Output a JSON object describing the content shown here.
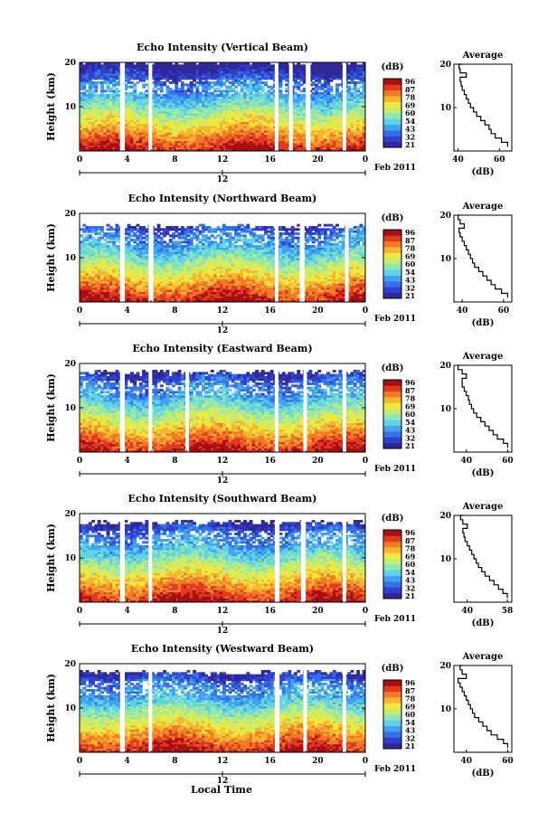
{
  "figure": {
    "xlabel": "Local Time",
    "date_label": "Feb 2011"
  },
  "colors": {
    "scale": [
      "#30279a",
      "#3140cc",
      "#3570e8",
      "#40a2f0",
      "#5fd2e6",
      "#8ee6b6",
      "#c2ec72",
      "#f1e83e",
      "#f6b530",
      "#f27a27",
      "#e03a20",
      "#a80f14"
    ]
  },
  "chart_data": [
    {
      "type": "heatmap",
      "title": "Echo Intensity (Vertical Beam)",
      "ylabel": "Height (km)",
      "ylim": [
        0,
        20
      ],
      "xlim": [
        0,
        24
      ],
      "x_ticks": [
        "0",
        "4",
        "8",
        "12",
        "16",
        "20",
        "0"
      ],
      "y_ticks": [
        "10",
        "20"
      ],
      "date_tick": "12",
      "colorbar": {
        "unit": "(dB)",
        "ticks": [
          "96",
          "87",
          "78",
          "69",
          "60",
          "54",
          "43",
          "32",
          "21"
        ],
        "range": [
          21,
          96
        ]
      },
      "gaps_hours": [
        [
          3.4,
          3.8
        ],
        [
          5.8,
          6.1
        ],
        [
          16.4,
          16.7
        ],
        [
          17.6,
          17.9
        ],
        [
          19.0,
          19.4
        ],
        [
          22.1,
          22.4
        ]
      ],
      "top_km": 20,
      "average": {
        "title": "Average",
        "xlabel": "(dB)",
        "xticks": [
          "40",
          "60"
        ],
        "xlim": [
          38,
          66
        ],
        "height_km": [
          1,
          2,
          3,
          4,
          5,
          6,
          7,
          8,
          9,
          10,
          11,
          12,
          13,
          14,
          15,
          16,
          17,
          18,
          19,
          20
        ],
        "values_db": [
          64,
          61,
          58,
          56,
          55,
          53,
          51,
          49,
          47.5,
          46,
          45,
          44,
          43,
          42,
          41.5,
          41,
          44,
          41,
          40.5,
          42
        ]
      }
    },
    {
      "type": "heatmap",
      "title": "Echo Intensity (Northward Beam)",
      "ylabel": "Height (km)",
      "ylim": [
        0,
        20
      ],
      "xlim": [
        0,
        24
      ],
      "x_ticks": [
        "0",
        "4",
        "8",
        "12",
        "16",
        "20",
        "0"
      ],
      "y_ticks": [
        "10",
        "20"
      ],
      "date_tick": "12",
      "colorbar": {
        "unit": "(dB)",
        "ticks": [
          "96",
          "87",
          "78",
          "69",
          "60",
          "54",
          "43",
          "32",
          "21"
        ],
        "range": [
          21,
          96
        ]
      },
      "gaps_hours": [
        [
          3.4,
          3.8
        ],
        [
          5.8,
          6.2
        ],
        [
          16.4,
          16.7
        ],
        [
          18.5,
          18.9
        ],
        [
          22.3,
          22.6
        ]
      ],
      "top_km": 17,
      "average": {
        "title": "Average",
        "xlabel": "(dB)",
        "xticks": [
          "40",
          "60"
        ],
        "xlim": [
          36,
          64
        ],
        "height_km": [
          1,
          2,
          3,
          4,
          5,
          6,
          7,
          8,
          9,
          10,
          11,
          12,
          13,
          14,
          15,
          16,
          17,
          18,
          19,
          20
        ],
        "values_db": [
          62,
          59,
          56,
          54,
          52,
          50,
          48,
          46,
          45,
          44,
          43,
          42,
          41,
          40,
          39,
          38.5,
          41,
          39,
          38,
          39
        ]
      }
    },
    {
      "type": "heatmap",
      "title": "Echo Intensity (Eastward Beam)",
      "ylabel": "Height (km)",
      "ylim": [
        0,
        20
      ],
      "xlim": [
        0,
        24
      ],
      "x_ticks": [
        "0",
        "4",
        "8",
        "12",
        "16",
        "20",
        "0"
      ],
      "y_ticks": [
        "10",
        "20"
      ],
      "date_tick": "12",
      "colorbar": {
        "unit": "(dB)",
        "ticks": [
          "96",
          "87",
          "78",
          "69",
          "60",
          "54",
          "43",
          "32",
          "21"
        ],
        "range": [
          21,
          96
        ]
      },
      "gaps_hours": [
        [
          3.4,
          3.8
        ],
        [
          5.8,
          6.1
        ],
        [
          8.9,
          9.2
        ],
        [
          16.4,
          16.7
        ],
        [
          18.8,
          19.1
        ],
        [
          22.1,
          22.4
        ]
      ],
      "top_km": 18,
      "average": {
        "title": "Average",
        "xlabel": "(dB)",
        "xticks": [
          "40",
          "60"
        ],
        "xlim": [
          34,
          62
        ],
        "height_km": [
          1,
          2,
          3,
          4,
          5,
          6,
          7,
          8,
          9,
          10,
          11,
          12,
          13,
          14,
          15,
          16,
          17,
          18,
          19,
          20
        ],
        "values_db": [
          60,
          58,
          55,
          53,
          51,
          49,
          47,
          45,
          43.5,
          42.5,
          41.5,
          41,
          40,
          39,
          38,
          38,
          40,
          38,
          36,
          37
        ]
      }
    },
    {
      "type": "heatmap",
      "title": "Echo Intensity (Southward Beam)",
      "ylabel": "Height (km)",
      "ylim": [
        0,
        20
      ],
      "xlim": [
        0,
        24
      ],
      "x_ticks": [
        "0",
        "4",
        "8",
        "12",
        "16",
        "20",
        "0"
      ],
      "y_ticks": [
        "10",
        "20"
      ],
      "date_tick": "12",
      "colorbar": {
        "unit": "(dB)",
        "ticks": [
          "96",
          "87",
          "78",
          "69",
          "60",
          "54",
          "43",
          "32",
          "21"
        ],
        "range": [
          21,
          96
        ]
      },
      "gaps_hours": [
        [
          3.4,
          3.8
        ],
        [
          5.8,
          6.1
        ],
        [
          16.4,
          16.8
        ],
        [
          18.6,
          19.0
        ],
        [
          22.1,
          22.4
        ]
      ],
      "top_km": 18,
      "average": {
        "title": "Average",
        "xlabel": "(dB)",
        "xticks": [
          "40",
          "58"
        ],
        "xlim": [
          34,
          60
        ],
        "height_km": [
          1,
          2,
          3,
          4,
          5,
          6,
          7,
          8,
          9,
          10,
          11,
          12,
          13,
          14,
          15,
          16,
          17,
          18,
          19,
          20
        ],
        "values_db": [
          58,
          56,
          54,
          52,
          50,
          48,
          46.5,
          45,
          44,
          43,
          42,
          41,
          40,
          39,
          38.5,
          38,
          40,
          38,
          37,
          38
        ]
      }
    },
    {
      "type": "heatmap",
      "title": "Echo Intensity (Westward Beam)",
      "ylabel": "Height (km)",
      "ylim": [
        0,
        20
      ],
      "xlim": [
        0,
        24
      ],
      "x_ticks": [
        "0",
        "4",
        "8",
        "12",
        "16",
        "20",
        "0"
      ],
      "y_ticks": [
        "10",
        "20"
      ],
      "date_tick": "12",
      "colorbar": {
        "unit": "(dB)",
        "ticks": [
          "96",
          "87",
          "78",
          "69",
          "60",
          "54",
          "43",
          "32",
          "21"
        ],
        "range": [
          21,
          96
        ]
      },
      "gaps_hours": [
        [
          3.4,
          3.8
        ],
        [
          5.8,
          6.1
        ],
        [
          16.4,
          16.8
        ],
        [
          18.8,
          19.1
        ],
        [
          22.1,
          22.4
        ]
      ],
      "top_km": 18,
      "average": {
        "title": "Average",
        "xlabel": "(dB)",
        "xticks": [
          "40",
          "60"
        ],
        "xlim": [
          34,
          62
        ],
        "height_km": [
          1,
          2,
          3,
          4,
          5,
          6,
          7,
          8,
          9,
          10,
          11,
          12,
          13,
          14,
          15,
          16,
          17,
          18,
          19,
          20
        ],
        "values_db": [
          60,
          58,
          55,
          52,
          50,
          48,
          46,
          44,
          43,
          42,
          41,
          40,
          39,
          38,
          37,
          36,
          40,
          38,
          37,
          38
        ]
      }
    }
  ]
}
